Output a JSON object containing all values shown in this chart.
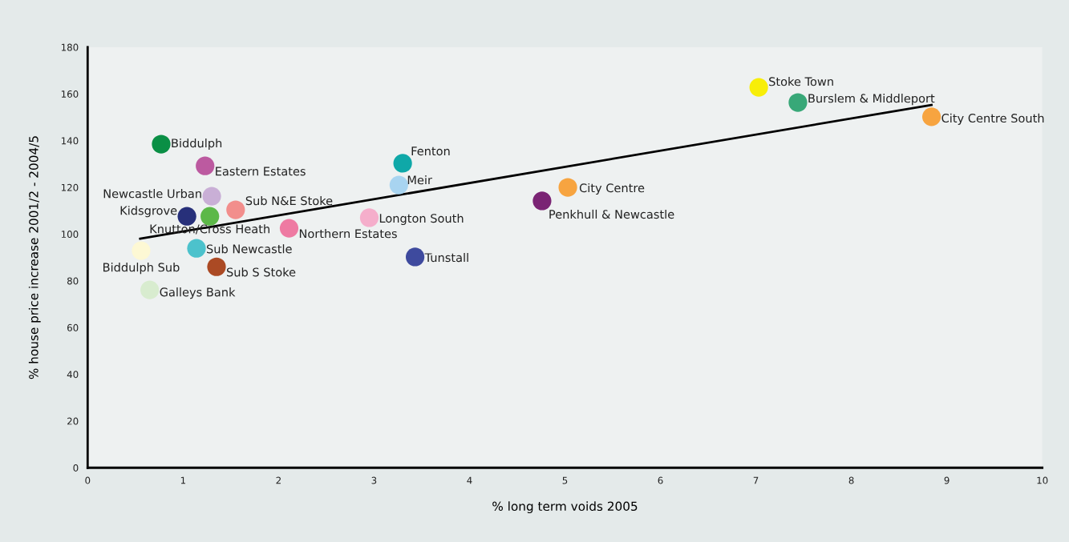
{
  "chart_data": {
    "type": "scatter",
    "xlabel": "% long term voids 2005",
    "ylabel": "% house price increase 2001/2 - 2004/5",
    "xlim": [
      0,
      10
    ],
    "xticks": [
      0,
      1,
      2,
      3,
      4,
      5,
      6,
      7,
      8,
      9,
      10
    ],
    "ylim": [
      0,
      180
    ],
    "yticks": [
      0,
      20,
      40,
      60,
      80,
      100,
      120,
      140,
      160,
      180
    ],
    "grid": false,
    "legend": false,
    "marker": "circle",
    "series": [
      {
        "name": "Biddulph",
        "color": "#0a8f45",
        "x": [
          0.77
        ],
        "values": [
          138.5
        ]
      },
      {
        "name": "Eastern Estates",
        "color": "#bc5aa0",
        "x": [
          1.23
        ],
        "values": [
          129.2
        ]
      },
      {
        "name": "Newcastle Urban",
        "color": "#c9afd6",
        "x": [
          1.3
        ],
        "values": [
          116.2
        ]
      },
      {
        "name": "Sub N&E Stoke",
        "color": "#f28e8c",
        "x": [
          1.55
        ],
        "values": [
          110.4
        ]
      },
      {
        "name": "Kidsgrove",
        "color": "#27307a",
        "x": [
          1.04
        ],
        "values": [
          107.6
        ]
      },
      {
        "name": "Knutton/Cross Heath",
        "color": "#5cb848",
        "x": [
          1.28
        ],
        "values": [
          107.6
        ]
      },
      {
        "name": "Northern Estates",
        "color": "#ee7aa2",
        "x": [
          2.11
        ],
        "values": [
          102.5
        ]
      },
      {
        "name": "Biddulph Sub",
        "color": "#fdf8d4",
        "x": [
          0.56
        ],
        "values": [
          92.9
        ]
      },
      {
        "name": "Sub Newcastle",
        "color": "#4cc2cc",
        "x": [
          1.14
        ],
        "values": [
          93.9
        ]
      },
      {
        "name": "Sub S Stoke",
        "color": "#ab4a24",
        "x": [
          1.35
        ],
        "values": [
          86.0
        ]
      },
      {
        "name": "Galleys Bank",
        "color": "#d8eccf",
        "x": [
          0.65
        ],
        "values": [
          76.1
        ]
      },
      {
        "name": "Fenton",
        "color": "#0fa8a8",
        "x": [
          3.3
        ],
        "values": [
          130.3
        ]
      },
      {
        "name": "Meir",
        "color": "#a8d4f0",
        "x": [
          3.26
        ],
        "values": [
          121.0
        ]
      },
      {
        "name": "Longton South",
        "color": "#f5aecb",
        "x": [
          2.95
        ],
        "values": [
          107.0
        ]
      },
      {
        "name": "Tunstall",
        "color": "#3e4a9e",
        "x": [
          3.43
        ],
        "values": [
          90.2
        ]
      },
      {
        "name": "Penkhull & Newcastle",
        "color": "#7a2474",
        "x": [
          4.76
        ],
        "values": [
          114.2
        ]
      },
      {
        "name": "City Centre",
        "color": "#f7a440",
        "x": [
          5.03
        ],
        "values": [
          120.0
        ]
      },
      {
        "name": "Stoke Town",
        "color": "#f8ee08",
        "x": [
          7.03
        ],
        "values": [
          162.8
        ]
      },
      {
        "name": "Burslem & Middleport",
        "color": "#38a878",
        "x": [
          7.44
        ],
        "values": [
          156.3
        ]
      },
      {
        "name": "City Centre South",
        "color": "#f7a440",
        "x": [
          8.84
        ],
        "values": [
          150.2
        ]
      },
      {
        "type": "line",
        "marker": "none",
        "color": "#000000",
        "x": [
          0.55,
          8.84
        ],
        "values": [
          98.0,
          155.3
        ]
      }
    ]
  }
}
